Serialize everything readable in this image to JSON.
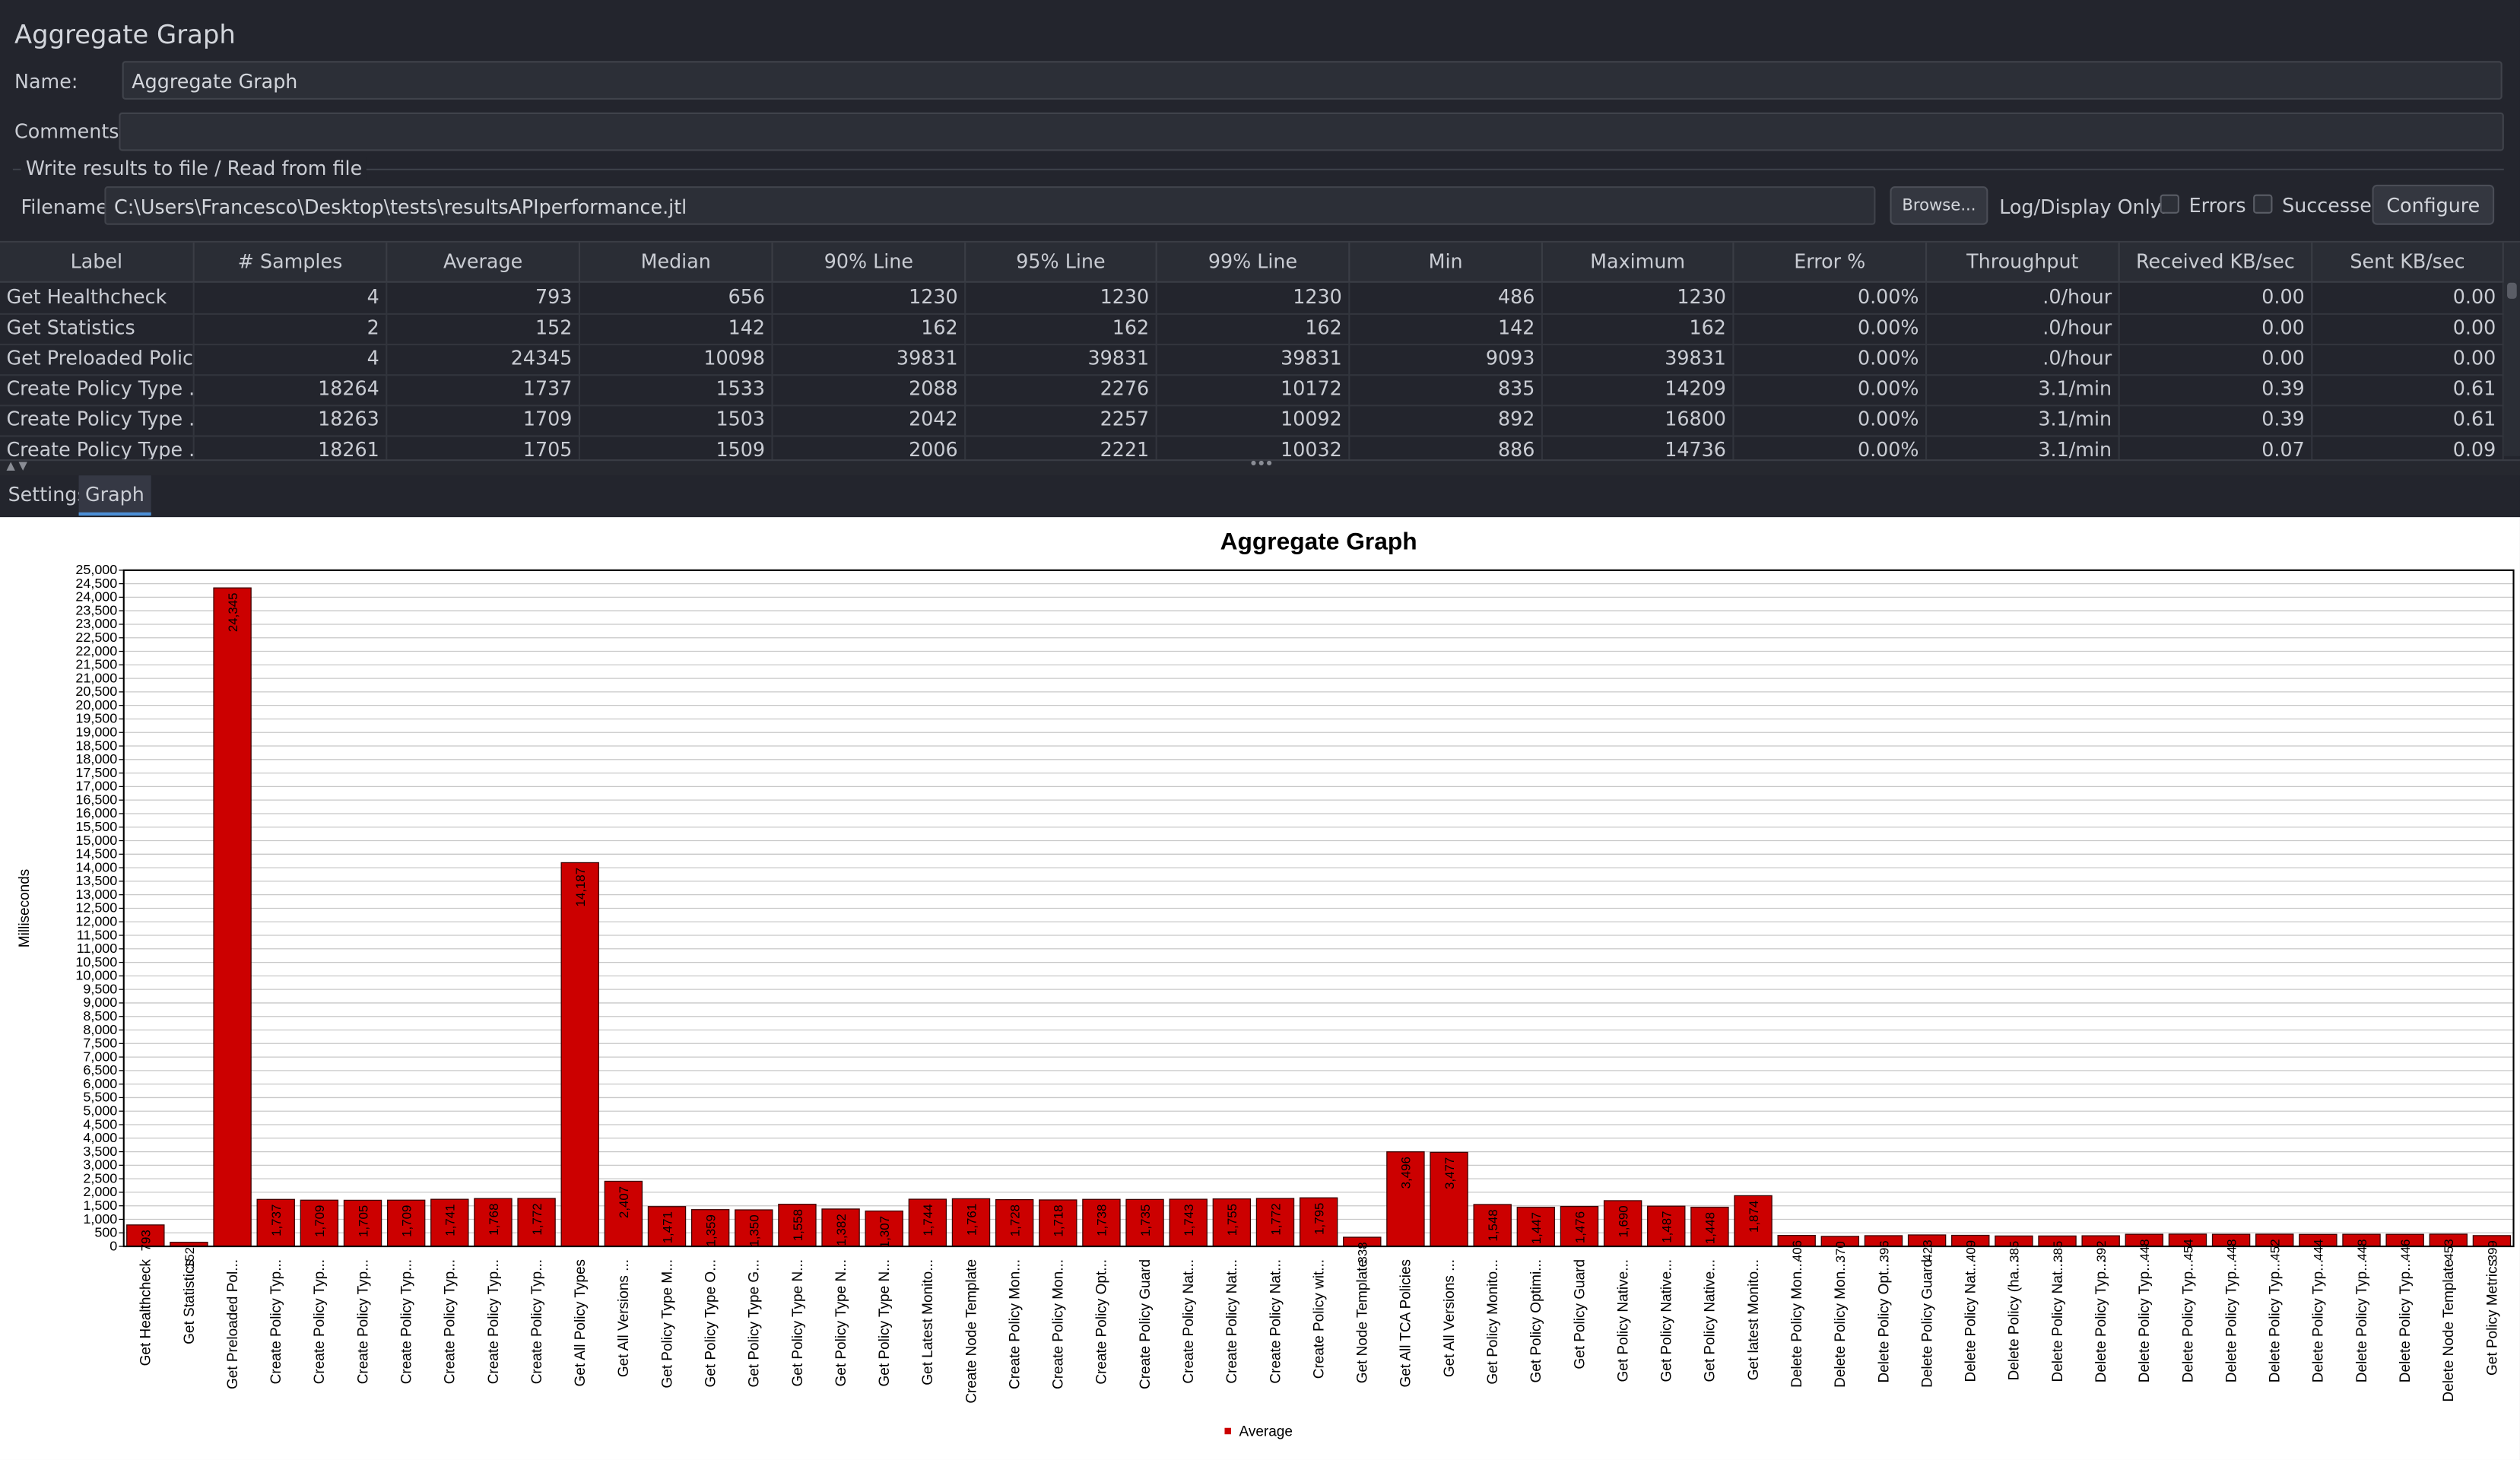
{
  "window": {
    "title": "Aggregate Graph"
  },
  "form": {
    "name_label": "Name:",
    "name_value": "Aggregate Graph",
    "comments_label": "Comments:",
    "comments_value": "",
    "group_title": "Write results to file / Read from file",
    "filename_label": "Filename",
    "filename_value": "C:\\Users\\Francesco\\Desktop\\tests\\resultsAPIperformance.jtl",
    "browse_label": "Browse...",
    "log_display_label": "Log/Display Only:",
    "errors_label": "Errors",
    "successes_label": "Successes",
    "configure_label": "Configure"
  },
  "table": {
    "headers": [
      "Label",
      "# Samples",
      "Average",
      "Median",
      "90% Line",
      "95% Line",
      "99% Line",
      "Min",
      "Maximum",
      "Error %",
      "Throughput",
      "Received KB/sec",
      "Sent KB/sec"
    ],
    "rows": [
      [
        "Get Healthcheck",
        "4",
        "793",
        "656",
        "1230",
        "1230",
        "1230",
        "486",
        "1230",
        "0.00%",
        ".0/hour",
        "0.00",
        "0.00"
      ],
      [
        "Get Statistics",
        "2",
        "152",
        "142",
        "162",
        "162",
        "162",
        "142",
        "162",
        "0.00%",
        ".0/hour",
        "0.00",
        "0.00"
      ],
      [
        "Get Preloaded Polic...",
        "4",
        "24345",
        "10098",
        "39831",
        "39831",
        "39831",
        "9093",
        "39831",
        "0.00%",
        ".0/hour",
        "0.00",
        "0.00"
      ],
      [
        "Create Policy Type ...",
        "18264",
        "1737",
        "1533",
        "2088",
        "2276",
        "10172",
        "835",
        "14209",
        "0.00%",
        "3.1/min",
        "0.39",
        "0.61"
      ],
      [
        "Create Policy Type ...",
        "18263",
        "1709",
        "1503",
        "2042",
        "2257",
        "10092",
        "892",
        "16800",
        "0.00%",
        "3.1/min",
        "0.39",
        "0.61"
      ],
      [
        "Create Policy Type ...",
        "18261",
        "1705",
        "1509",
        "2006",
        "2221",
        "10032",
        "886",
        "14736",
        "0.00%",
        "3.1/min",
        "0.07",
        "0.09"
      ]
    ]
  },
  "tabs": [
    {
      "label": "Settings",
      "active": false
    },
    {
      "label": "Graph",
      "active": true
    }
  ],
  "colors": {
    "bar": "#cc0000",
    "accent": "#4c8fd6"
  },
  "chart_data": {
    "type": "bar",
    "title": "Aggregate Graph",
    "ylabel": "Milliseconds",
    "xlabel": "",
    "ylim": [
      0,
      25000
    ],
    "ytick_step": 500,
    "grid": true,
    "legend": "bottom",
    "series": [
      {
        "name": "Average"
      }
    ],
    "categories": [
      "Get Healthcheck",
      "Get Statistics",
      "Get Preloaded Pol...",
      "Create Policy Typ...",
      "Create Policy Typ...",
      "Create Policy Typ...",
      "Create Policy Typ...",
      "Create Policy Typ...",
      "Create Policy Typ...",
      "Create Policy Typ...",
      "Get All Policy Types",
      "Get All Versions ...",
      "Get Policy Type M...",
      "Get Policy Type O...",
      "Get Policy Type G...",
      "Get Policy Type N...",
      "Get Policy Type N...",
      "Get Policy Type N...",
      "Get Latest Monito...",
      "Create Node Template",
      "Create Policy Mon...",
      "Create Policy Mon...",
      "Create Policy Opt...",
      "Create Policy Guard",
      "Create Policy Nat...",
      "Create Policy Nat...",
      "Create Policy Nat...",
      "Create Policy wit...",
      "Get Node Template",
      "Get All TCA Policies",
      "Get All Versions ...",
      "Get Policy Monito...",
      "Get Policy Optimi...",
      "Get Policy Guard",
      "Get Policy Native...",
      "Get Policy Native...",
      "Get Policy Native...",
      "Get latest Monito...",
      "Delete Policy Mon...",
      "Delete Policy Mon...",
      "Delete Policy Opt...",
      "Delete Policy Guard",
      "Delete Policy Nat...",
      "Delete Policy (ha...",
      "Delete Policy Nat...",
      "Delete Policy Typ...",
      "Delete Policy Typ...",
      "Delete Policy Typ...",
      "Delete Policy Typ...",
      "Delete Policy Typ...",
      "Delete Policy Typ...",
      "Delete Policy Typ...",
      "Delete Policy Typ...",
      "Delete Node Template",
      "Get Policy Metrics"
    ],
    "values": [
      793,
      152,
      24345,
      1737,
      1709,
      1705,
      1709,
      1741,
      1768,
      1772,
      14187,
      2407,
      1471,
      1359,
      1350,
      1558,
      1382,
      1307,
      1744,
      1761,
      1728,
      1718,
      1738,
      1735,
      1743,
      1755,
      1772,
      1795,
      338,
      3496,
      3477,
      1548,
      1447,
      1476,
      1690,
      1487,
      1448,
      1874,
      406,
      370,
      396,
      423,
      409,
      385,
      385,
      392,
      448,
      454,
      448,
      452,
      444,
      448,
      446,
      453,
      399
    ],
    "data_labels": [
      "793",
      "152",
      "24,345",
      "1,737",
      "1,709",
      "1,705",
      "1,709",
      "1,741",
      "1,768",
      "1,772",
      "14,187",
      "2,407",
      "1,471",
      "1,359",
      "1,350",
      "1,558",
      "1,382",
      "1,307",
      "1,744",
      "1,761",
      "1,728",
      "1,718",
      "1,738",
      "1,735",
      "1,743",
      "1,755",
      "1,772",
      "1,795",
      "338",
      "3,496",
      "3,477",
      "1,548",
      "1,447",
      "1,476",
      "1,690",
      "1,487",
      "1,448",
      "1,874",
      "406",
      "370",
      "396",
      "423",
      "409",
      "385",
      "385",
      "392",
      "448",
      "454",
      "448",
      "452",
      "444",
      "448",
      "446",
      "453",
      "399"
    ]
  }
}
